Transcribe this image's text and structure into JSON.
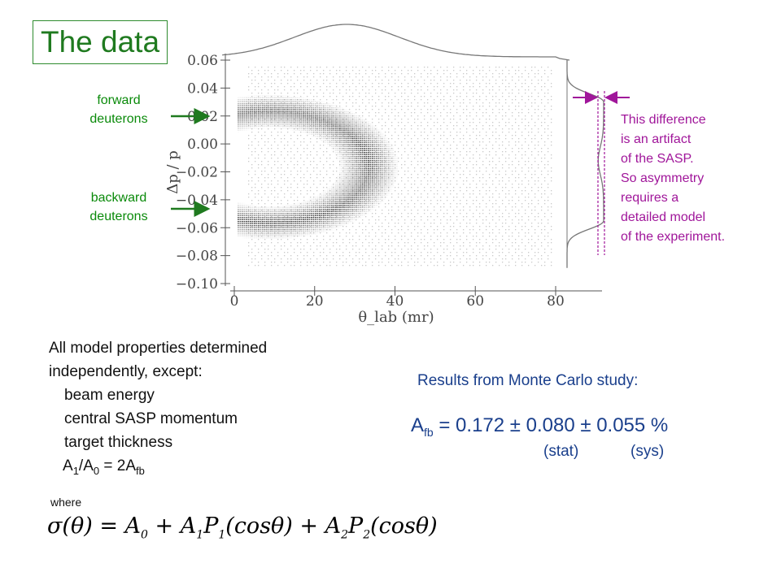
{
  "title": "The data",
  "labels": {
    "forward": [
      "forward",
      "deuterons"
    ],
    "backward": [
      "backward",
      "deuterons"
    ]
  },
  "note": [
    "This difference",
    "is an artifact",
    "of the SASP.",
    "So asymmetry",
    "requires a",
    "detailed model",
    "of the experiment."
  ],
  "left_text": {
    "line1": "All model properties determined",
    "line2": "independently, except:",
    "items": [
      "beam energy",
      "central SASP momentum",
      "target thickness"
    ],
    "ratio_a1": "A",
    "ratio_sub1": "1",
    "ratio_slash": "/A",
    "ratio_sub0": "0",
    "ratio_eq": " = 2A",
    "ratio_fb": "fb"
  },
  "results": {
    "heading": "Results from Monte Carlo study:",
    "afb_label": "A",
    "afb_sub": "fb",
    "afb_value": " = 0.172 ± 0.080 ± 0.055 %",
    "stat": "(stat)",
    "sys": "(sys)"
  },
  "where": "where",
  "equation": {
    "lhs": "σ(θ) = A",
    "s0": "0",
    "t1": " + A",
    "s1": "1",
    "t1b": "P",
    "s1b": "1",
    "t2": "(cosθ) + A",
    "s2": "2",
    "t2b": "P",
    "s2b": "2",
    "t3": "(cosθ)"
  },
  "colors": {
    "green": "#1f7a1f",
    "magenta": "#a0169a",
    "blue": "#1a3f8c"
  },
  "chart_data": {
    "type": "heatmap",
    "description_type": "2D histogram with projections",
    "xlabel": "θ_lab (mr)",
    "ylabel": "Δp / p",
    "x_ticks": [
      0,
      20,
      40,
      60,
      80
    ],
    "y_ticks": [
      0.06,
      0.04,
      0.02,
      0.0,
      -0.02,
      -0.04,
      -0.06,
      -0.08,
      -0.1
    ],
    "x_tick_labels": [
      "0",
      "20",
      "40",
      "60",
      "80"
    ],
    "y_tick_labels": [
      "0.06",
      "0.04",
      "0.02",
      "0.00",
      "−0.02",
      "−0.04",
      "−0.06",
      "−0.08",
      "−0.10"
    ],
    "xlim": [
      0,
      80
    ],
    "ylim": [
      -0.1,
      0.06
    ],
    "x_projection_peak": 28,
    "y_projection_peak": 0.0
  }
}
